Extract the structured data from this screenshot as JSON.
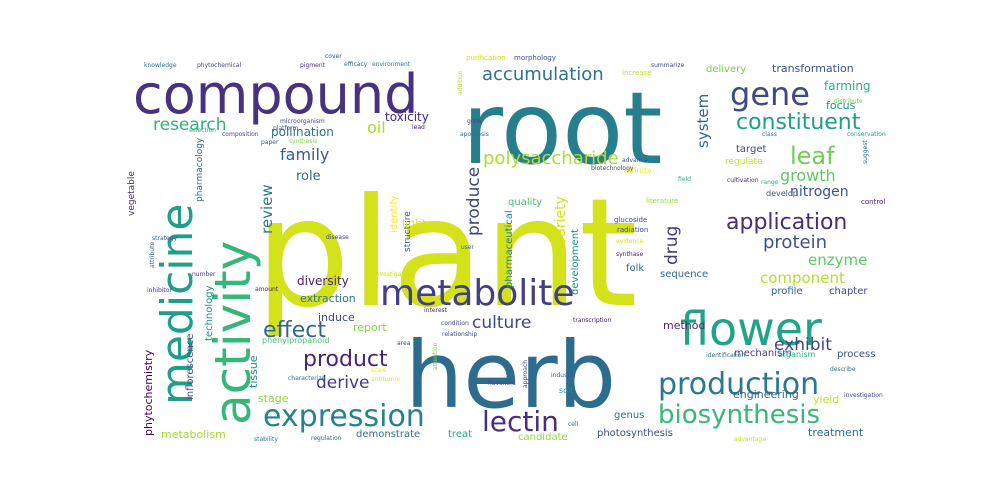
{
  "wordcloud": {
    "words": [
      {
        "text": "plant",
        "color": "#d3e21b"
      },
      {
        "text": "root",
        "color": "#277f8e"
      },
      {
        "text": "herb",
        "color": "#2e6c8e"
      },
      {
        "text": "compound",
        "color": "#46327e"
      },
      {
        "text": "activity",
        "color": "#35b779"
      },
      {
        "text": "medicine",
        "color": "#1f9e89"
      },
      {
        "text": "flower",
        "color": "#20a486"
      },
      {
        "text": "metabolite",
        "color": "#433e85"
      },
      {
        "text": "production",
        "color": "#2a788e"
      },
      {
        "text": "expression",
        "color": "#26828e"
      },
      {
        "text": "biosynthesis",
        "color": "#37b878"
      },
      {
        "text": "lectin",
        "color": "#472f7d"
      },
      {
        "text": "gene",
        "color": "#3e4989"
      },
      {
        "text": "constituent",
        "color": "#1fa088"
      },
      {
        "text": "application",
        "color": "#472c7a"
      },
      {
        "text": "leaf",
        "color": "#6ece58"
      },
      {
        "text": "accumulation",
        "color": "#2c728e"
      },
      {
        "text": "polysaccharide",
        "color": "#addc30"
      },
      {
        "text": "product",
        "color": "#482576"
      },
      {
        "text": "effect",
        "color": "#31688e"
      },
      {
        "text": "protein",
        "color": "#3b528b"
      },
      {
        "text": "research",
        "color": "#2db27d"
      },
      {
        "text": "exhibit",
        "color": "#404688"
      },
      {
        "text": "culture",
        "color": "#3f4788"
      },
      {
        "text": "growth",
        "color": "#5ec962"
      },
      {
        "text": "nitrogen",
        "color": "#3a548c"
      },
      {
        "text": "component",
        "color": "#b5de2b"
      },
      {
        "text": "family",
        "color": "#35608d"
      },
      {
        "text": "derive",
        "color": "#443983"
      },
      {
        "text": "produce",
        "color": "#414487"
      },
      {
        "text": "variety",
        "color": "#d8e219"
      },
      {
        "text": "system",
        "color": "#31688e"
      },
      {
        "text": "oil",
        "color": "#a5db36"
      },
      {
        "text": "drug",
        "color": "#453781"
      },
      {
        "text": "enzyme",
        "color": "#5ec962"
      },
      {
        "text": "review",
        "color": "#2a788e"
      },
      {
        "text": "pollination",
        "color": "#2e6e8e"
      },
      {
        "text": "toxicity",
        "color": "#482878"
      },
      {
        "text": "transformation",
        "color": "#39558c"
      },
      {
        "text": "delivery",
        "color": "#7ad151"
      },
      {
        "text": "farming",
        "color": "#2ab07f"
      },
      {
        "text": "focus",
        "color": "#21918c"
      },
      {
        "text": "role",
        "color": "#31688e"
      },
      {
        "text": "diversity",
        "color": "#482173"
      },
      {
        "text": "extraction",
        "color": "#2a788e"
      },
      {
        "text": "induce",
        "color": "#3e4a89"
      },
      {
        "text": "report",
        "color": "#86d549"
      },
      {
        "text": "phytochemistry",
        "color": "#440154"
      },
      {
        "text": "inflorescence",
        "color": "#3b528b"
      },
      {
        "text": "technology",
        "color": "#21918c"
      },
      {
        "text": "tissue",
        "color": "#238a8d"
      },
      {
        "text": "stage",
        "color": "#90d743"
      },
      {
        "text": "metabolism",
        "color": "#a2da37"
      },
      {
        "text": "demonstrate",
        "color": "#2c738e"
      },
      {
        "text": "treat",
        "color": "#22a884"
      },
      {
        "text": "candidate",
        "color": "#95d840"
      },
      {
        "text": "genus",
        "color": "#2e6d8e"
      },
      {
        "text": "photosynthesis",
        "color": "#3d4e8a"
      },
      {
        "text": "treatment",
        "color": "#2f6b8e"
      },
      {
        "text": "engineering",
        "color": "#30698e"
      },
      {
        "text": "mechanism",
        "color": "#443a83"
      },
      {
        "text": "yield",
        "color": "#c2df23"
      },
      {
        "text": "process",
        "color": "#3b518b"
      },
      {
        "text": "method",
        "color": "#472878"
      },
      {
        "text": "chapter",
        "color": "#3f4889"
      },
      {
        "text": "profile",
        "color": "#355f8d"
      },
      {
        "text": "sequence",
        "color": "#31688e"
      },
      {
        "text": "folk",
        "color": "#2c738e"
      },
      {
        "text": "development",
        "color": "#20928c"
      },
      {
        "text": "pharmaceutical",
        "color": "#287d8e"
      },
      {
        "text": "quality",
        "color": "#44bf70"
      },
      {
        "text": "structure",
        "color": "#355e8d"
      },
      {
        "text": "identify",
        "color": "#fde725"
      },
      {
        "text": "light",
        "color": "#dde318"
      },
      {
        "text": "target",
        "color": "#3f4788"
      },
      {
        "text": "regulate",
        "color": "#c8e020"
      },
      {
        "text": "vegetable",
        "color": "#472d7b"
      },
      {
        "text": "pharmacology",
        "color": "#2d708e"
      },
      {
        "text": "phenylpropanoid",
        "color": "#4ac16d"
      },
      {
        "text": "purification",
        "color": "#d0e11c"
      },
      {
        "text": "morphology",
        "color": "#3b528b"
      },
      {
        "text": "increase",
        "color": "#b8de29"
      },
      {
        "text": "summarize",
        "color": "#3f4788"
      },
      {
        "text": "knowledge",
        "color": "#2b758e"
      },
      {
        "text": "phytochemical",
        "color": "#3f4788"
      },
      {
        "text": "pigment",
        "color": "#472f7d"
      },
      {
        "text": "efficacy",
        "color": "#31688e"
      },
      {
        "text": "environment",
        "color": "#2a778e"
      },
      {
        "text": "cover",
        "color": "#3a548c"
      },
      {
        "text": "microorganism",
        "color": "#424086"
      },
      {
        "text": "platform",
        "color": "#3b528b"
      },
      {
        "text": "addition",
        "color": "#b5de2b"
      },
      {
        "text": "lead",
        "color": "#481a6c"
      },
      {
        "text": "grow",
        "color": "#424086"
      },
      {
        "text": "apoptosis",
        "color": "#2e6e8e"
      },
      {
        "text": "class",
        "color": "#29798e"
      },
      {
        "text": "advance",
        "color": "#3b528b"
      },
      {
        "text": "affinity",
        "color": "#fde725"
      },
      {
        "text": "biotechnology",
        "color": "#3e4989"
      },
      {
        "text": "field",
        "color": "#27ad81"
      },
      {
        "text": "cultivation",
        "color": "#472d7b"
      },
      {
        "text": "range",
        "color": "#35b779"
      },
      {
        "text": "develop",
        "color": "#3a548c"
      },
      {
        "text": "control",
        "color": "#481f70"
      },
      {
        "text": "conservation",
        "color": "#20a386"
      },
      {
        "text": "suggest",
        "color": "#30698e"
      },
      {
        "text": "distribute",
        "color": "#5ec962"
      },
      {
        "text": "glucoside",
        "color": "#3d4e8a"
      },
      {
        "text": "literature",
        "color": "#a0da39"
      },
      {
        "text": "radiation",
        "color": "#3e4989"
      },
      {
        "text": "evidence",
        "color": "#d2e21b"
      },
      {
        "text": "synthase",
        "color": "#482475"
      },
      {
        "text": "identification",
        "color": "#2c728e"
      },
      {
        "text": "organism",
        "color": "#2db27d"
      },
      {
        "text": "investigation",
        "color": "#3e4a89"
      },
      {
        "text": "advantage",
        "color": "#c5e021"
      },
      {
        "text": "describe",
        "color": "#2e6d8e"
      },
      {
        "text": "industry",
        "color": "#38588c"
      },
      {
        "text": "soil",
        "color": "#20928c"
      },
      {
        "text": "approach",
        "color": "#3f4788"
      },
      {
        "text": "transcription",
        "color": "#481668"
      },
      {
        "text": "condition",
        "color": "#414487"
      },
      {
        "text": "relationship",
        "color": "#3e4989"
      },
      {
        "text": "interest",
        "color": "#472a7a"
      },
      {
        "text": "attention",
        "color": "#7ad151"
      },
      {
        "text": "regulation",
        "color": "#31688e"
      },
      {
        "text": "stability",
        "color": "#2a788e"
      },
      {
        "text": "characterize",
        "color": "#2d708e"
      },
      {
        "text": "scale",
        "color": "#f1e51d"
      },
      {
        "text": "attribute",
        "color": "#2f6c8e"
      },
      {
        "text": "inhibitor",
        "color": "#46307e"
      },
      {
        "text": "strategy",
        "color": "#35608d"
      },
      {
        "text": "amount",
        "color": "#482071"
      },
      {
        "text": "number",
        "color": "#453882"
      },
      {
        "text": "selection",
        "color": "#34b679"
      },
      {
        "text": "composition",
        "color": "#3f4788"
      },
      {
        "text": "paper",
        "color": "#3b528b"
      },
      {
        "text": "synthesis",
        "color": "#86d549"
      },
      {
        "text": "disease",
        "color": "#443983"
      },
      {
        "text": "investigate",
        "color": "#c8e020"
      },
      {
        "text": "antitumor",
        "color": "#e5e419"
      },
      {
        "text": "area",
        "color": "#3f4788"
      },
      {
        "text": "user",
        "color": "#2c728e"
      },
      {
        "text": "cell",
        "color": "#2d708e"
      },
      {
        "text": "flavonoid",
        "color": "#3d4e8a"
      }
    ]
  }
}
